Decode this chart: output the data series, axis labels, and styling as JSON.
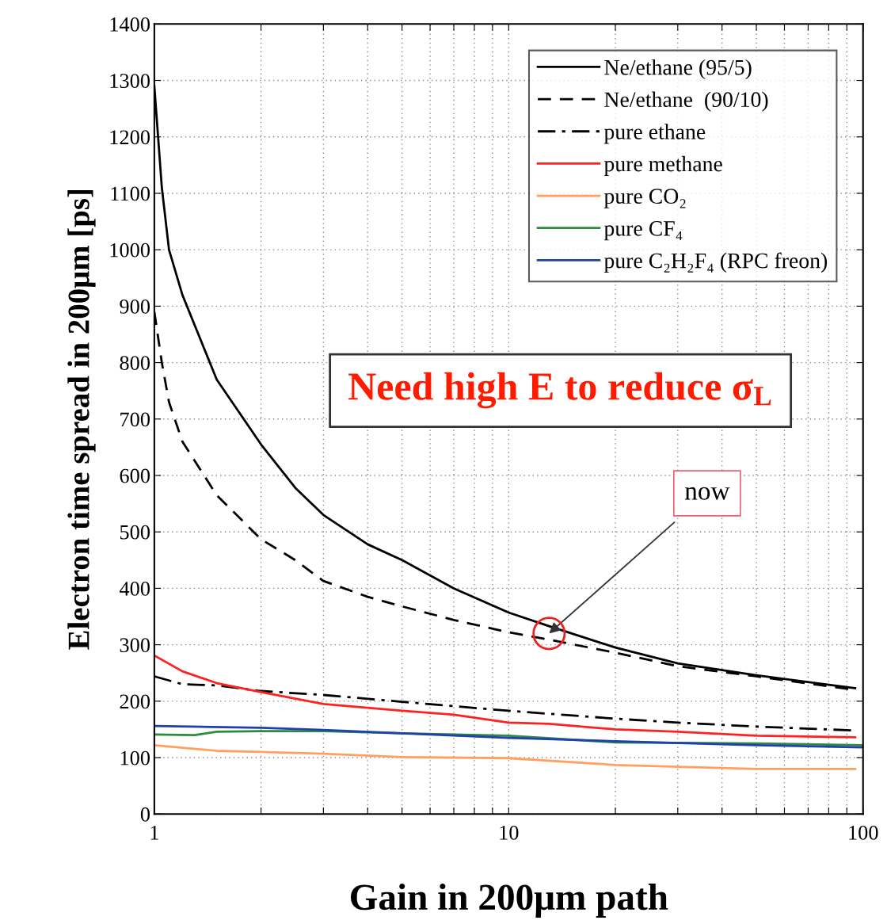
{
  "chart_data": {
    "type": "line",
    "xlabel": "Gain in 200μm path",
    "ylabel": "Electron time spread in 200μm [ps]",
    "log": "x",
    "xlim": [
      1,
      100
    ],
    "ylim": [
      0,
      1400
    ],
    "xticks": [
      1,
      {
        "value": 2,
        "label": null
      },
      {
        "value": 3,
        "label": null
      },
      {
        "value": 4,
        "label": null
      },
      {
        "value": 5,
        "label": null
      },
      {
        "value": 6,
        "label": null
      },
      {
        "value": 7,
        "label": null
      },
      {
        "value": 8,
        "label": null
      },
      {
        "value": 9,
        "label": null
      },
      10,
      {
        "value": 20,
        "label": null
      },
      {
        "value": 30,
        "label": null
      },
      {
        "value": 40,
        "label": null
      },
      {
        "value": 50,
        "label": null
      },
      {
        "value": 60,
        "label": null
      },
      {
        "value": 70,
        "label": null
      },
      {
        "value": 80,
        "label": null
      },
      {
        "value": 90,
        "label": null
      },
      100
    ],
    "yticks": [
      0,
      100,
      200,
      300,
      400,
      500,
      600,
      700,
      800,
      900,
      1000,
      1100,
      1200,
      1300,
      1400
    ],
    "grid": true,
    "legend": "top right",
    "marker": "none",
    "series": [
      {
        "name": "Ne/ethane (95/5)",
        "color": "#000000",
        "line_style": "solid",
        "x": [
          1,
          1.05,
          1.1,
          1.2,
          1.5,
          2,
          2.5,
          3,
          4,
          5,
          7,
          10,
          13,
          20,
          30,
          50,
          95
        ],
        "values": [
          1290,
          1110,
          1000,
          920,
          770,
          655,
          578,
          530,
          478,
          450,
          400,
          357,
          333,
          295,
          267,
          246,
          223
        ]
      },
      {
        "name": "Ne/ethane  (90/10)",
        "color": "#000000",
        "line_style": "dashed",
        "x": [
          1,
          1.05,
          1.1,
          1.2,
          1.5,
          2,
          2.5,
          3,
          4,
          5,
          7,
          10,
          13,
          20,
          30,
          50,
          95
        ],
        "values": [
          890,
          800,
          730,
          660,
          565,
          487,
          450,
          413,
          385,
          368,
          344,
          322,
          309,
          286,
          262,
          244,
          220
        ]
      },
      {
        "name": "pure ethane",
        "color": "#000000",
        "line_style": "dashdot",
        "x": [
          1,
          1.2,
          1.5,
          2,
          3,
          5,
          10,
          20,
          30,
          50,
          95
        ],
        "values": [
          244,
          230,
          228,
          218,
          211,
          199,
          183,
          169,
          162,
          155,
          148
        ]
      },
      {
        "name": "pure methane",
        "color": "#ff2020",
        "line_style": "solid",
        "x": [
          1,
          1.2,
          1.5,
          2,
          3,
          5,
          7,
          10,
          13,
          20,
          30,
          50,
          95
        ],
        "values": [
          281,
          253,
          232,
          216,
          195,
          183,
          176,
          162,
          160,
          150,
          146,
          139,
          136
        ]
      },
      {
        "name": "pure CO₂",
        "color": "#ffa060",
        "line_style": "solid",
        "x": [
          1,
          1.5,
          2,
          3,
          5,
          10,
          20,
          50,
          95
        ],
        "values": [
          122,
          112,
          110,
          107,
          101,
          99,
          87,
          80,
          80
        ]
      },
      {
        "name": "pure CF₄",
        "color": "#2e8b3e",
        "line_style": "solid",
        "x": [
          1,
          1.3,
          1.5,
          2,
          3,
          5,
          10,
          20,
          50,
          100
        ],
        "values": [
          141,
          140,
          146,
          147,
          147,
          143,
          139,
          127,
          125,
          122
        ]
      },
      {
        "name": "pure C₂H₂F₄ (RPC freon)",
        "color": "#2040b0",
        "line_style": "solid",
        "x": [
          1,
          2,
          3,
          5,
          10,
          20,
          50,
          100
        ],
        "values": [
          156,
          153,
          149,
          143,
          135,
          129,
          122,
          118
        ]
      }
    ],
    "annotations": [
      "Need high E to reduce σ$_{L}$",
      {
        "text": "now",
        "x": 13,
        "y": 320
      }
    ]
  }
}
